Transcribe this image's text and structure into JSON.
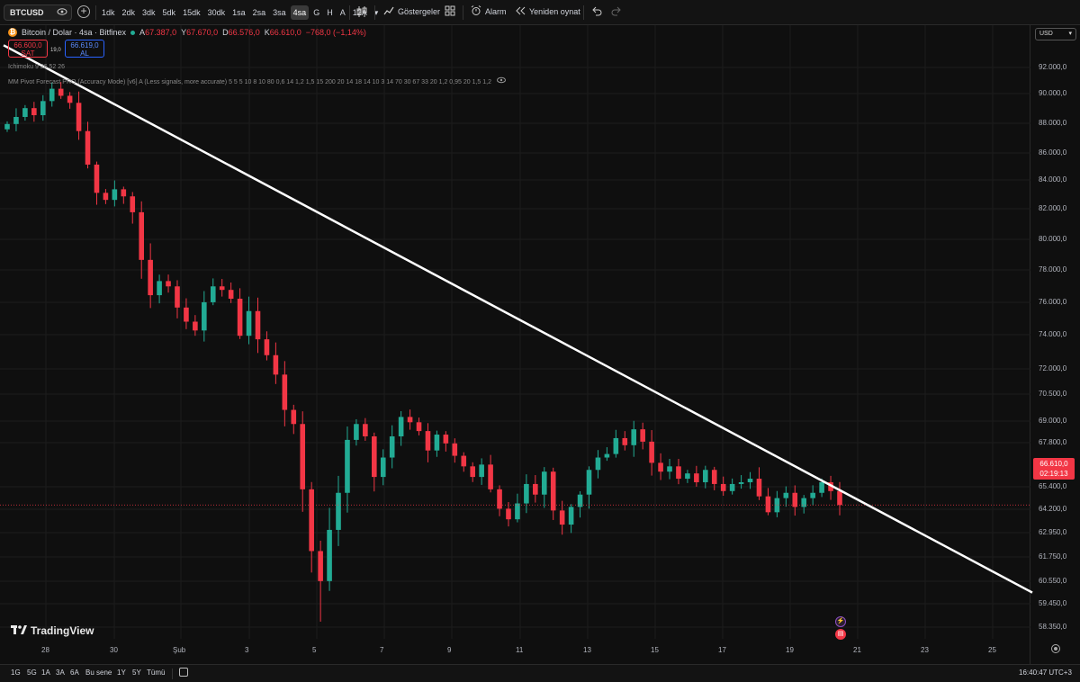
{
  "toolbar": {
    "symbol": "BTCUSD",
    "intervals": [
      "1dk",
      "2dk",
      "3dk",
      "5dk",
      "15dk",
      "30dk",
      "1sa",
      "2sa",
      "3sa",
      "4sa",
      "G",
      "H",
      "A",
      "12A"
    ],
    "active_interval": "4sa",
    "indicators_label": "Göstergeler",
    "alarm_label": "Alarm",
    "replay_label": "Yeniden oynat"
  },
  "legend": {
    "title": "Bitcoin / Dolar · 4sa · Bitfinex",
    "open_key": "A",
    "open": "67.387,0",
    "high_key": "Y",
    "high": "67.670,0",
    "low_key": "D",
    "low": "66.576,0",
    "close_key": "K",
    "close": "66.610,0",
    "change": "−768,0 (−1,14%)"
  },
  "trade": {
    "sell_price": "66.600,0",
    "sell_label": "SAT",
    "spread": "19,0",
    "buy_price": "66.619,0",
    "buy_label": "AL"
  },
  "indicators": {
    "ichimoku": "Ichimoku 9 26 52 26",
    "pivot": "MM Pivot Forecast PRO (Accuracy Mode) [v6] A (Less signals, more accurate) 5 5 5 10 8 10 80 0,6 14 1,2 1,5 15 200 20 14 18 14 10 3 14 70 30 67 33 20 1,2 0,95 20 1,5 1,2"
  },
  "price_scale": {
    "currency": "USD",
    "ticks": [
      "92.000,0",
      "90.000,0",
      "88.000,0",
      "86.000,0",
      "84.000,0",
      "82.000,0",
      "80.000,0",
      "78.000,0",
      "76.000,0",
      "74.000,0",
      "72.000,0",
      "70.500,0",
      "69.000,0",
      "67.800,0",
      "65.400,0",
      "64.200,0",
      "62.950,0",
      "61.750,0",
      "60.550,0",
      "59.450,0",
      "58.350,0"
    ],
    "last_price": "66.610,0",
    "countdown": "02:19:13"
  },
  "time_axis": {
    "ticks": [
      "28",
      "30",
      "Şub",
      "3",
      "5",
      "7",
      "9",
      "11",
      "13",
      "15",
      "17",
      "19",
      "21",
      "23",
      "25"
    ]
  },
  "branding": "TradingView",
  "bottom_bar": {
    "ranges": [
      "1G",
      "5G",
      "1A",
      "3A",
      "6A",
      "Bu sene",
      "1Y",
      "5Y",
      "Tümü"
    ],
    "clock": "16:40:47 UTC+3"
  },
  "colors": {
    "up": "#22ab94",
    "down": "#f23645",
    "trendline": "#ffffff",
    "background": "#0f0f0f"
  },
  "chart_data": {
    "type": "candlestick",
    "ylabel": "USD",
    "ylim": [
      57600,
      93800
    ],
    "trendline": {
      "start": [
        "Jan 27",
        92000
      ],
      "end": [
        "Feb 25",
        61750
      ]
    },
    "last_price": 66610,
    "closes": [
      88200,
      88600,
      89100,
      88700,
      89500,
      90200,
      89800,
      89400,
      87800,
      85900,
      84300,
      83900,
      84500,
      84100,
      83200,
      80500,
      78500,
      79300,
      79000,
      77800,
      77000,
      76500,
      78100,
      79000,
      78800,
      78300,
      76200,
      77600,
      76000,
      75100,
      74000,
      72000,
      71200,
      67500,
      64000,
      62300,
      65200,
      67300,
      70300,
      71200,
      70500,
      68200,
      69300,
      70500,
      71600,
      71300,
      70800,
      69700,
      70600,
      70100,
      69400,
      68800,
      68200,
      68900,
      67500,
      66400,
      65800,
      66700,
      67800,
      67200,
      68500,
      66300,
      65500,
      66500,
      67200,
      68600,
      69300,
      69500,
      70400,
      70000,
      70900,
      70200,
      69000,
      68500,
      68800,
      68100,
      68400,
      67900,
      68600,
      67800,
      67400,
      67800,
      67900,
      68100,
      67100,
      66200,
      67000,
      67300,
      66500,
      67000,
      67300,
      67900,
      67400,
      66610
    ]
  }
}
